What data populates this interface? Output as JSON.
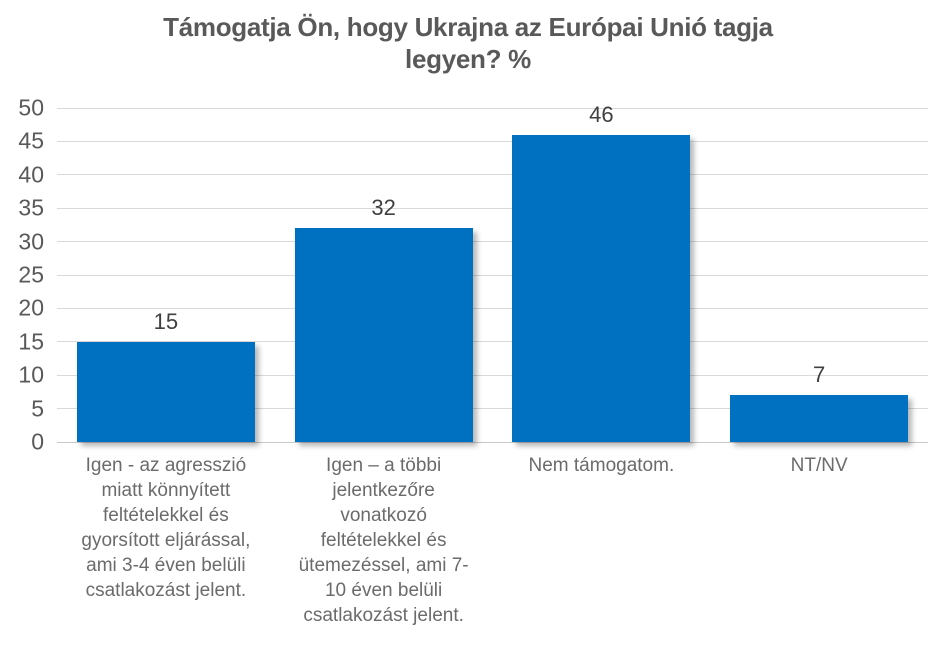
{
  "page": {
    "background": "#ffffff"
  },
  "chart_data": {
    "type": "bar",
    "title": "Támogatja Ön, hogy Ukrajna az Európai Unió tagja legyen? %",
    "title_lines": "Támogatja Ön, hogy Ukrajna az Európai Unió tagja\nlegyen? %",
    "categories": [
      "Igen - az agresszió miatt könnyített feltételekkel és gyorsított eljárással, ami 3-4 éven belüli csatlakozást jelent.",
      "Igen – a többi jelentkezőre vonatkozó feltételekkel és ütemezéssel, ami 7-10 éven belüli csatlakozást jelent.",
      "Nem támogatom.",
      "NT/NV"
    ],
    "category_lines": [
      "Igen - az agresszió\nmiatt könnyített\nfeltételekkel és\ngyorsított eljárással,\nami 3-4 éven belüli\ncsatlakozást jelent.",
      "Igen – a többi\njelentkezőre\nvonatkozó\nfeltételekkel és\nütemezéssel, ami 7-\n10 éven belüli\ncsatlakozást jelent.",
      "Nem támogatom.",
      "NT/NV"
    ],
    "values": [
      15,
      32,
      46,
      7
    ],
    "data_labels": [
      "15",
      "32",
      "46",
      "7"
    ],
    "xlabel": "",
    "ylabel": "",
    "ylim": [
      0,
      50
    ],
    "yticks": [
      0,
      5,
      10,
      15,
      20,
      25,
      30,
      35,
      40,
      45,
      50
    ],
    "grid": true,
    "legend": false,
    "colors": {
      "bar": "#0070C0",
      "title_text": "#595959",
      "axis_text": "#595959",
      "data_label_text": "#404040",
      "category_text": "#6b6b6b",
      "gridline": "#d9d9d9"
    }
  }
}
